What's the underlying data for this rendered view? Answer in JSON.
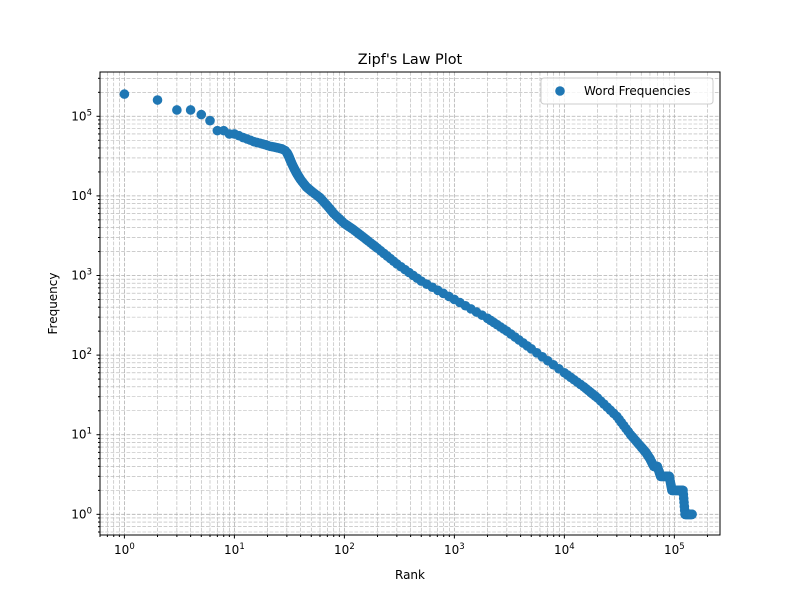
{
  "chart_data": {
    "type": "scatter",
    "title": "Zipf's Law Plot",
    "xlabel": "Rank",
    "ylabel": "Frequency",
    "xscale": "log",
    "yscale": "log",
    "xlim": [
      0.6,
      260000
    ],
    "ylim": [
      0.55,
      360000
    ],
    "grid": "both (major and minor), dashed",
    "legend_position": "top-right",
    "marker_color": "#1f77b4",
    "x_ticks": [
      {
        "value": 1,
        "base": "10",
        "exp": "0"
      },
      {
        "value": 10,
        "base": "10",
        "exp": "1"
      },
      {
        "value": 100,
        "base": "10",
        "exp": "2"
      },
      {
        "value": 1000,
        "base": "10",
        "exp": "3"
      },
      {
        "value": 10000,
        "base": "10",
        "exp": "4"
      },
      {
        "value": 100000,
        "base": "10",
        "exp": "5"
      }
    ],
    "y_ticks": [
      {
        "value": 1,
        "base": "10",
        "exp": "0"
      },
      {
        "value": 10,
        "base": "10",
        "exp": "1"
      },
      {
        "value": 100,
        "base": "10",
        "exp": "2"
      },
      {
        "value": 1000,
        "base": "10",
        "exp": "3"
      },
      {
        "value": 10000,
        "base": "10",
        "exp": "4"
      },
      {
        "value": 100000,
        "base": "10",
        "exp": "5"
      }
    ],
    "series": [
      {
        "name": "Word Frequencies",
        "color": "#1f77b4",
        "x": [
          1,
          2,
          3,
          4,
          5,
          6,
          7,
          8,
          9,
          10,
          11,
          12,
          13,
          14,
          15,
          16,
          17,
          18,
          19,
          20,
          21,
          22,
          23,
          24,
          25,
          26,
          27,
          28,
          29,
          30,
          31,
          32,
          33,
          35,
          37,
          40,
          45,
          50,
          60,
          70,
          80,
          100,
          120,
          150,
          200,
          300,
          500,
          1000,
          2000,
          3000,
          5000,
          10000,
          15000,
          20000,
          30000,
          40000,
          50000,
          55000,
          60000,
          65000,
          70000,
          75000,
          80000,
          85000,
          90000,
          95000,
          100000,
          105000,
          110000,
          115000,
          120000,
          125000,
          130000,
          135000,
          140000,
          145000
        ],
        "y": [
          190000,
          160000,
          120000,
          120000,
          105000,
          88000,
          66000,
          66000,
          60000,
          60000,
          57000,
          54000,
          52000,
          50000,
          48000,
          47000,
          46000,
          45000,
          44000,
          43000,
          42000,
          41500,
          41000,
          40500,
          40000,
          39500,
          39000,
          38000,
          37000,
          35000,
          32000,
          29000,
          26000,
          22000,
          19000,
          16000,
          13000,
          11500,
          9500,
          7500,
          6000,
          4500,
          3800,
          3000,
          2200,
          1400,
          850,
          500,
          290,
          200,
          120,
          60,
          40,
          29,
          17,
          10,
          7,
          6,
          5,
          4,
          4,
          3,
          3,
          3,
          3,
          2,
          2,
          2,
          2,
          2,
          2,
          1,
          1,
          1,
          1,
          1
        ]
      }
    ]
  }
}
